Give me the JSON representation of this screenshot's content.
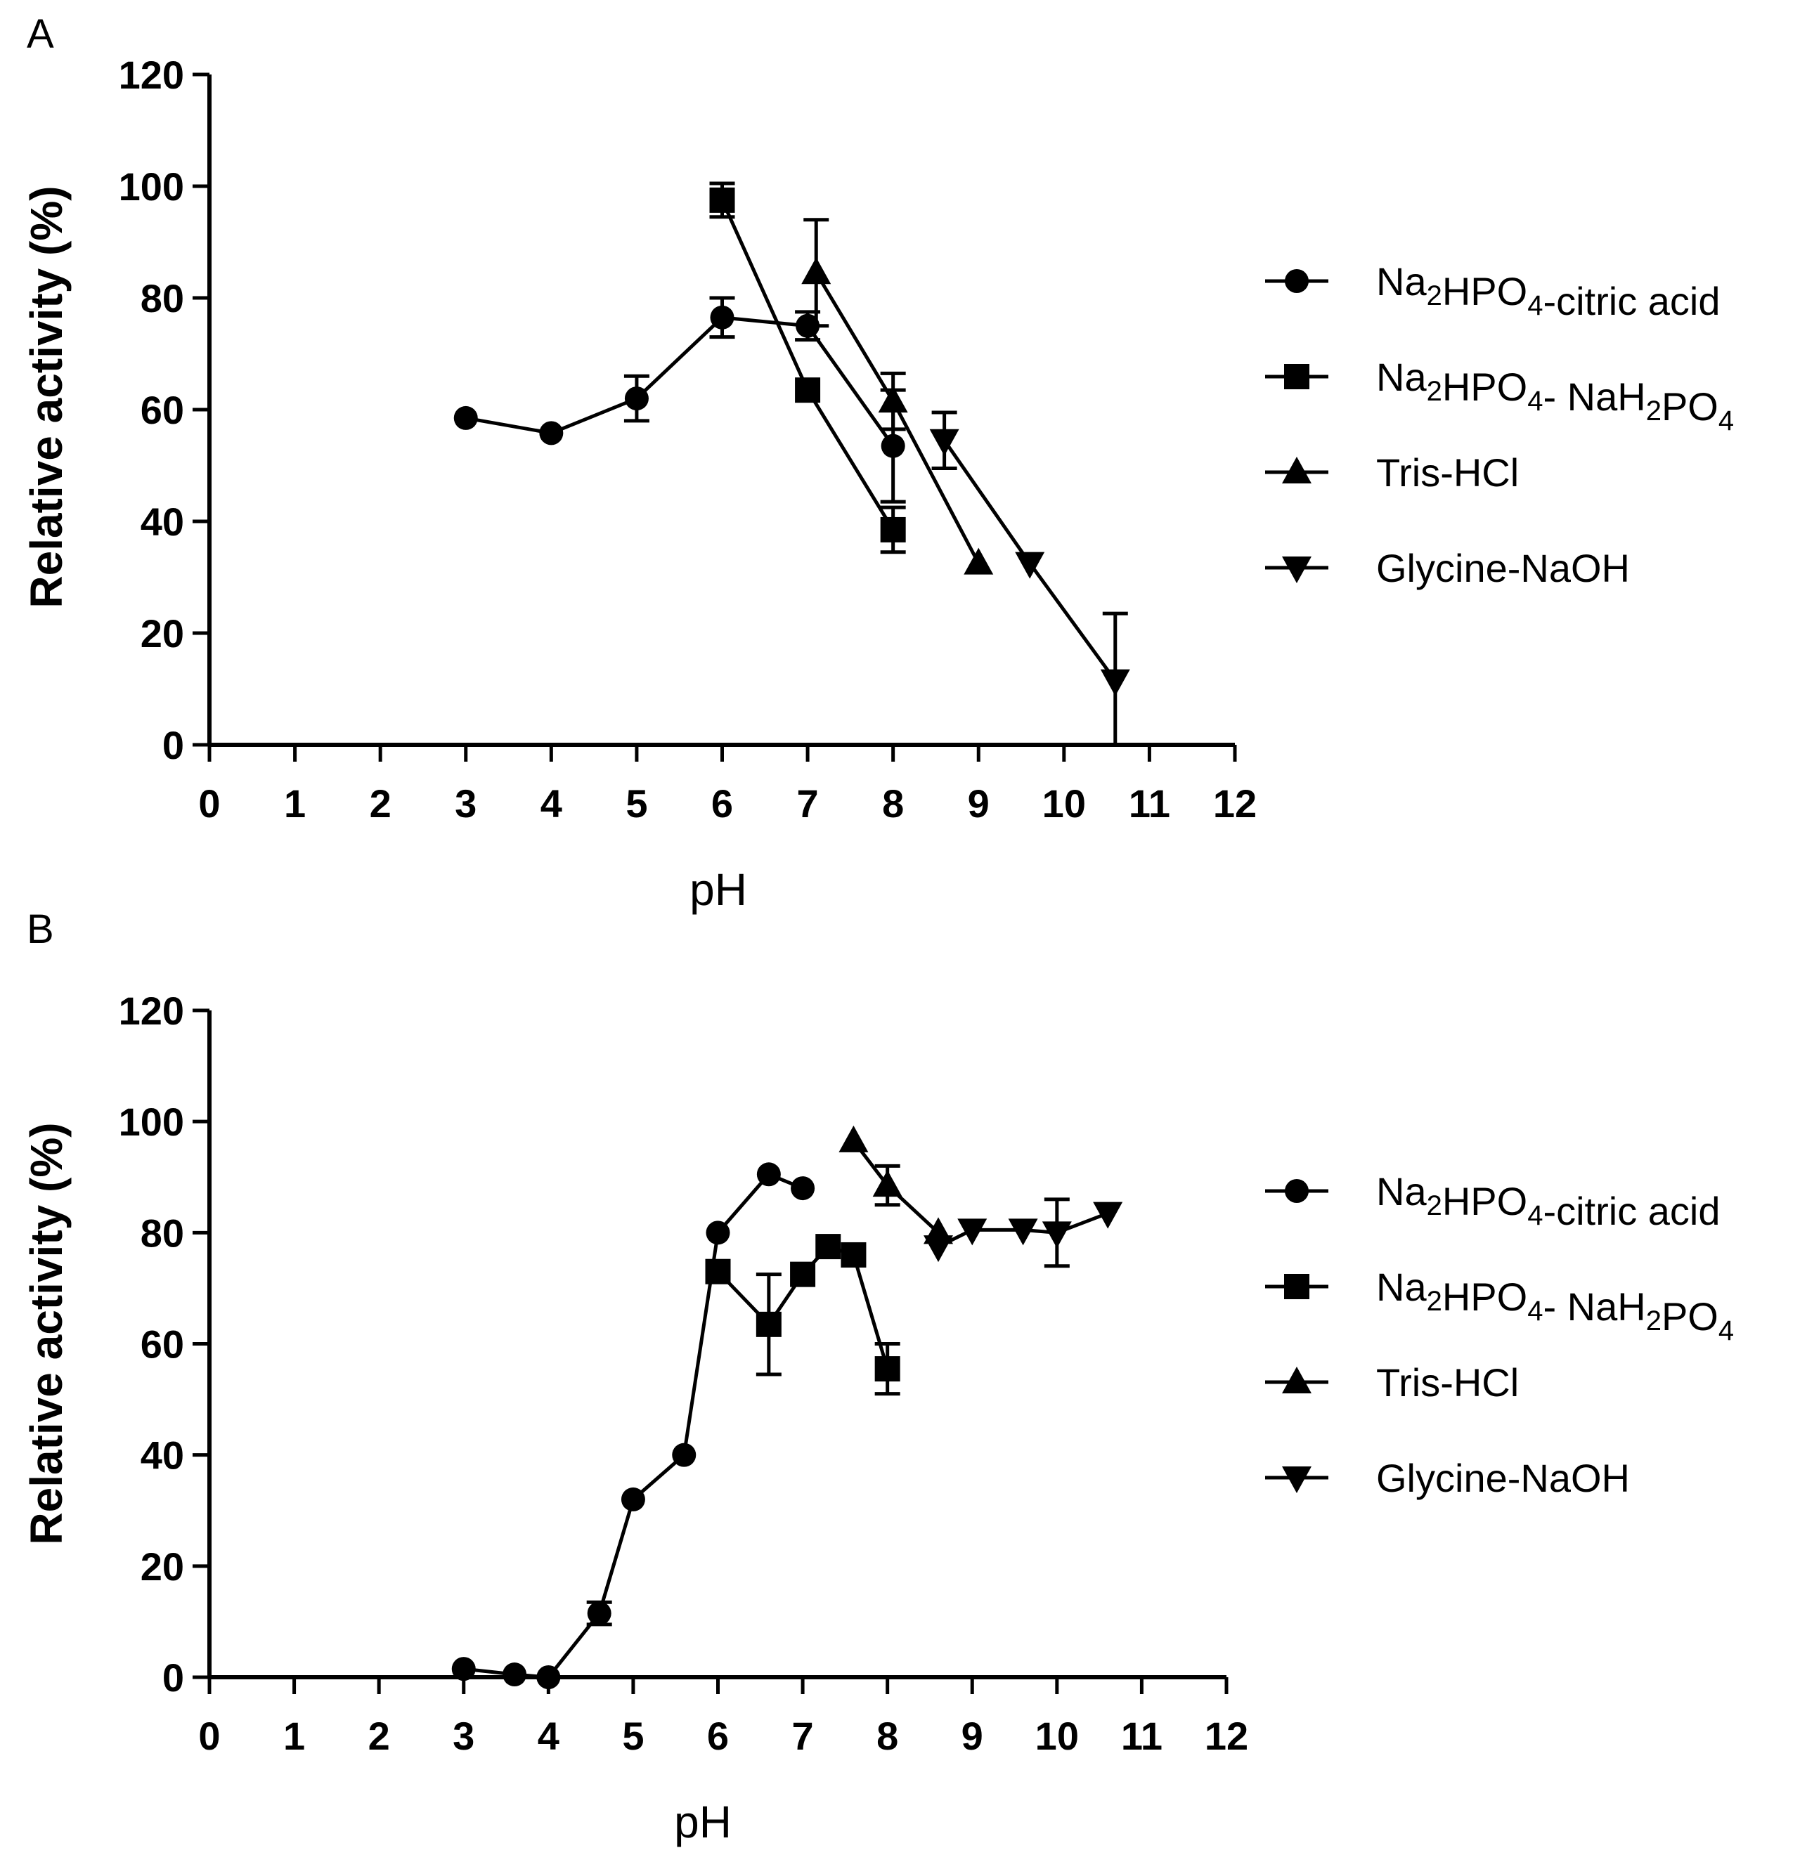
{
  "figure": {
    "panels": [
      {
        "letter": "A",
        "xlabel": "pH",
        "ylabel": "Relative activity (%)",
        "x_ticks": [
          "0",
          "1",
          "2",
          "3",
          "4",
          "5",
          "6",
          "7",
          "8",
          "9",
          "10",
          "11",
          "12"
        ],
        "y_ticks": [
          "0",
          "20",
          "40",
          "60",
          "80",
          "100",
          "120"
        ]
      },
      {
        "letter": "B",
        "xlabel": "pH",
        "ylabel": "Relative activity (%)",
        "x_ticks": [
          "0",
          "1",
          "2",
          "3",
          "4",
          "5",
          "6",
          "7",
          "8",
          "9",
          "10",
          "11",
          "12"
        ],
        "y_ticks": [
          "0",
          "20",
          "40",
          "60",
          "80",
          "100",
          "120"
        ]
      }
    ],
    "legend": [
      {
        "base": "Na",
        "sub1": "2",
        "mid": "HPO",
        "sub2": "4",
        "rest": "-citric acid",
        "sub3": "",
        "tail": ""
      },
      {
        "base": "Na",
        "sub1": "2",
        "mid": "HPO",
        "sub2": "4",
        "rest": "- NaH",
        "sub3": "2",
        "tail": "PO"
      },
      {
        "base": "Tris-HCl",
        "sub1": "",
        "mid": "",
        "sub2": "",
        "rest": "",
        "sub3": "",
        "tail": ""
      },
      {
        "base": "Glycine-NaOH",
        "sub1": "",
        "mid": "",
        "sub2": "",
        "rest": "",
        "sub3": "",
        "tail": ""
      }
    ],
    "legend_tail_sub": "4"
  },
  "chart_data": [
    {
      "type": "line",
      "panel": "A",
      "title": "",
      "xlabel": "pH",
      "ylabel": "Relative activity (%)",
      "xlim": [
        0,
        12
      ],
      "ylim": [
        0,
        120
      ],
      "x_ticks": [
        0,
        1,
        2,
        3,
        4,
        5,
        6,
        7,
        8,
        9,
        10,
        11,
        12
      ],
      "y_ticks": [
        0,
        20,
        40,
        60,
        80,
        100,
        120
      ],
      "legend_position": "right",
      "series": [
        {
          "name": "Na2HPO4-citric acid",
          "marker": "circle",
          "x": [
            3,
            4,
            5,
            6,
            7,
            8
          ],
          "y": [
            58.5,
            55.8,
            62,
            76.5,
            75,
            53.5
          ],
          "err": [
            0,
            0,
            4,
            3.5,
            2.5,
            10
          ]
        },
        {
          "name": "Na2HPO4-NaH2PO4",
          "marker": "square",
          "x": [
            6,
            7,
            8
          ],
          "y": [
            97.5,
            63.5,
            38.5
          ],
          "err": [
            3,
            0,
            4
          ]
        },
        {
          "name": "Tris-HCl",
          "marker": "triangle-up",
          "x": [
            7.1,
            8,
            9
          ],
          "y": [
            84.5,
            61.5,
            32.5
          ],
          "err": [
            9.5,
            5,
            0
          ]
        },
        {
          "name": "Glycine-NaOH",
          "marker": "triangle-down",
          "x": [
            8.6,
            9.6,
            10.6
          ],
          "y": [
            54.5,
            32.5,
            11.5
          ],
          "err": [
            5,
            0,
            12
          ]
        }
      ]
    },
    {
      "type": "line",
      "panel": "B",
      "title": "",
      "xlabel": "pH",
      "ylabel": "Relative activity (%)",
      "xlim": [
        0,
        12
      ],
      "ylim": [
        0,
        120
      ],
      "x_ticks": [
        0,
        1,
        2,
        3,
        4,
        5,
        6,
        7,
        8,
        9,
        10,
        11,
        12
      ],
      "y_ticks": [
        0,
        20,
        40,
        60,
        80,
        100,
        120
      ],
      "legend_position": "right",
      "series": [
        {
          "name": "Na2HPO4-citric acid",
          "marker": "circle",
          "x": [
            3,
            3.6,
            4,
            4.6,
            5,
            5.6,
            6,
            6.6,
            7
          ],
          "y": [
            1.5,
            0.5,
            0,
            11.5,
            32,
            40,
            80,
            90.5,
            88
          ],
          "err": [
            0,
            0,
            0,
            2,
            0,
            0,
            0,
            0,
            0
          ]
        },
        {
          "name": "Na2HPO4-NaH2PO4",
          "marker": "square",
          "x": [
            6,
            6.6,
            7,
            7.3,
            7.6,
            8
          ],
          "y": [
            73,
            63.5,
            72.5,
            77.5,
            76,
            55.5
          ],
          "err": [
            0,
            9,
            0,
            0,
            0,
            4.5
          ]
        },
        {
          "name": "Tris-HCl",
          "marker": "triangle-up",
          "x": [
            7.6,
            8,
            8.6
          ],
          "y": [
            96.5,
            88.5,
            80
          ],
          "err": [
            0,
            3.5,
            0
          ]
        },
        {
          "name": "Glycine-NaOH",
          "marker": "triangle-down",
          "x": [
            8.6,
            9,
            9.6,
            10,
            10.6
          ],
          "y": [
            77.5,
            80.5,
            80.5,
            80,
            83.5
          ],
          "err": [
            0,
            0,
            0,
            6,
            0
          ]
        }
      ]
    }
  ]
}
